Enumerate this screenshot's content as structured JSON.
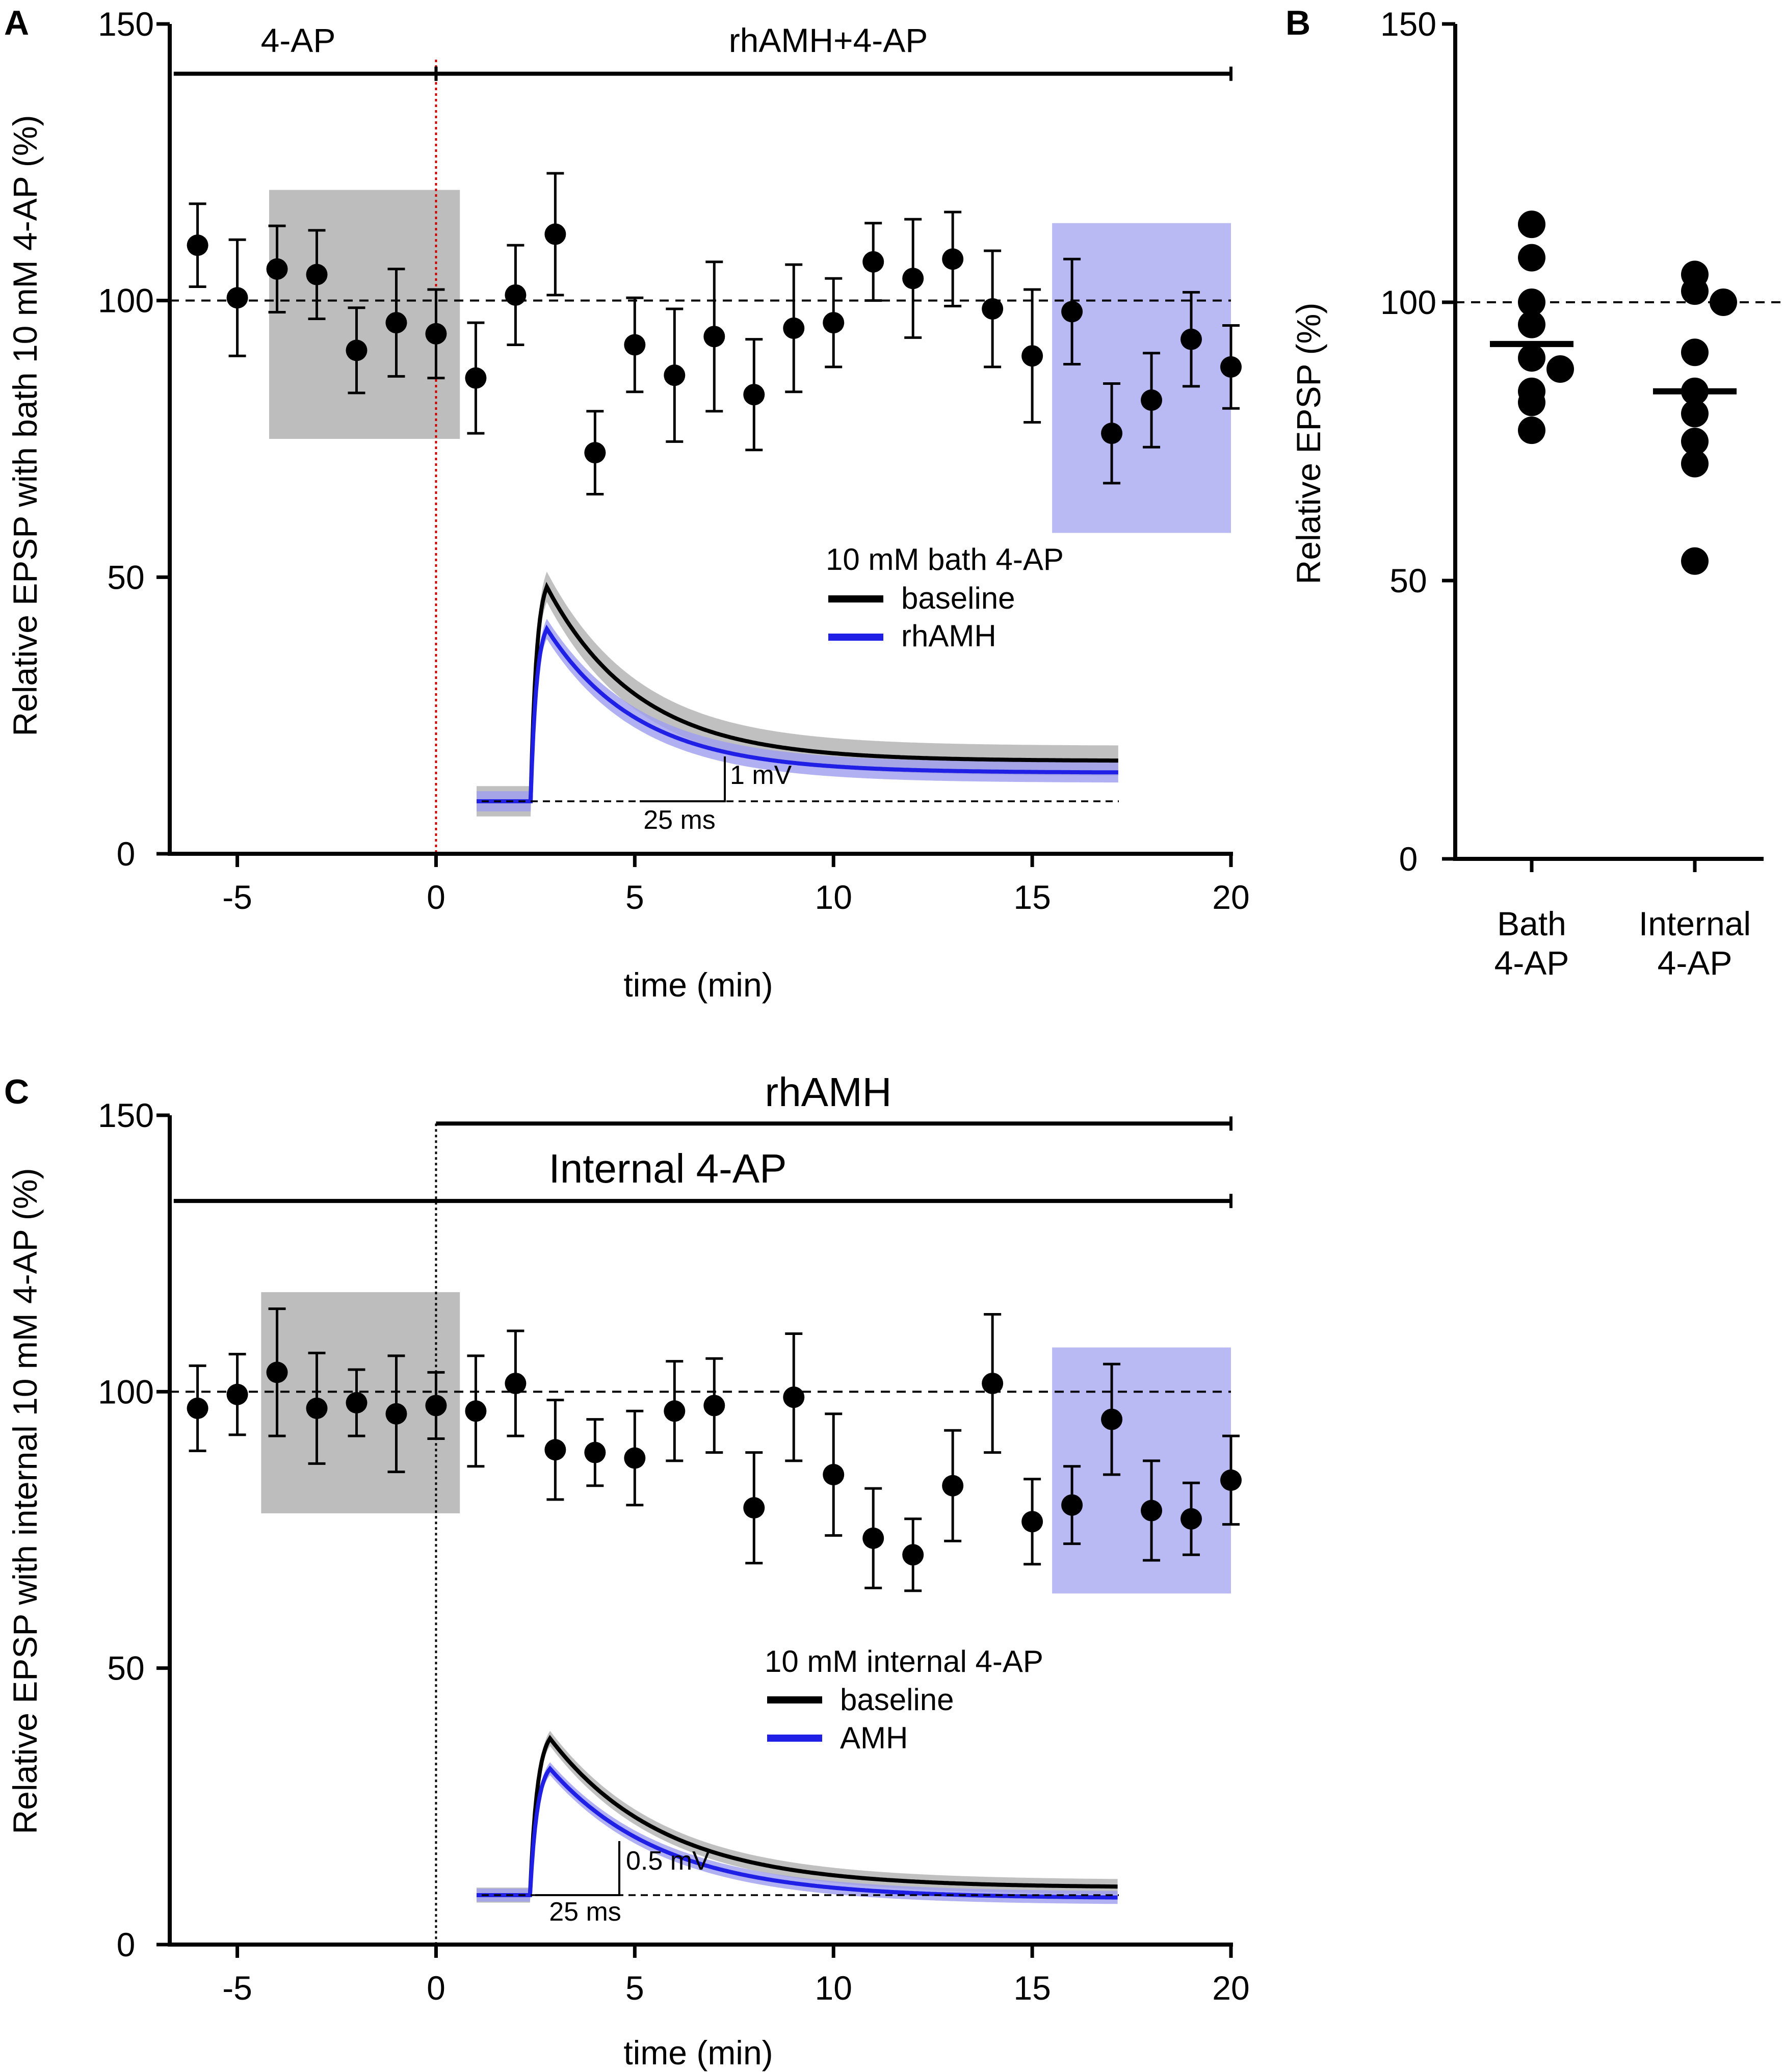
{
  "panel_labels": {
    "a": "A",
    "b": "B",
    "c": "C"
  },
  "colors": {
    "axis": "#000000",
    "gray_box": "#bdbdbd",
    "blue_box": "#b9b9f3",
    "rhamh_trace": "#1f1fe6",
    "baseline_trace": "#000000",
    "trace_band": "#b0b0b0",
    "blue_band": "#9c9cf0",
    "drug_start_line_a": "#cc0000"
  },
  "chart_data": [
    {
      "id": "A",
      "type": "scatter",
      "title": "",
      "xlabel": "time (min)",
      "ylabel": "Relative EPSP with bath 10 mM 4-AP (%)",
      "xlim": [
        -6.7,
        20
      ],
      "ylim": [
        0,
        150
      ],
      "xticks": [
        -5,
        0,
        5,
        10,
        15,
        20
      ],
      "xtick_labels": [
        "-5",
        "0",
        "5",
        "10",
        "15",
        "20"
      ],
      "yticks": [
        0,
        50,
        100,
        150
      ],
      "ytick_labels": [
        "0",
        "50",
        "100",
        "150"
      ],
      "reference_line": 100,
      "drug_bars": [
        {
          "label": "4-AP",
          "x_start": -6.6,
          "x_end": 0,
          "y": 141
        },
        {
          "label": "rhAMH+4-AP",
          "x_start": 0,
          "x_end": 20,
          "y": 141
        }
      ],
      "shaded_windows": [
        {
          "name": "baseline window",
          "x": [
            -4.2,
            0.6
          ],
          "y": [
            75,
            120
          ],
          "color": "gray"
        },
        {
          "name": "rhAMH window",
          "x": [
            15.5,
            20
          ],
          "y": [
            58,
            114
          ],
          "color": "blue"
        }
      ],
      "x": [
        -6,
        -5,
        -4,
        -3,
        -2,
        -1,
        0,
        1,
        2,
        3,
        4,
        5,
        6,
        7,
        8,
        9,
        10,
        11,
        12,
        13,
        14,
        15,
        16,
        17,
        18,
        19,
        20
      ],
      "values": [
        110,
        100.5,
        105.7,
        104.7,
        91,
        96,
        94,
        86,
        101,
        112,
        72.5,
        92,
        86.5,
        93.5,
        83,
        95,
        96,
        107,
        104,
        107.5,
        98.5,
        90,
        98,
        76,
        82,
        93,
        88
      ],
      "errors": [
        7.5,
        10.5,
        7.8,
        8,
        7.7,
        9.7,
        8,
        10,
        9,
        11,
        7.5,
        8.5,
        12,
        13.5,
        10,
        11.5,
        8,
        7,
        10.7,
        8.5,
        10.5,
        12,
        9.5,
        9,
        8.5,
        8.5,
        7.5
      ],
      "inset": {
        "legend_title": "10 mM bath 4-AP",
        "legend_entries": [
          "baseline",
          "rhAMH"
        ],
        "scale_v": "1 mV",
        "scale_t": "25 ms",
        "onset_ms": 20,
        "traces": [
          {
            "name": "baseline",
            "peak_mv": 2.55,
            "decay_end_mv": 0.48,
            "band_mv": 0.18
          },
          {
            "name": "rhAMH",
            "peak_mv": 2.05,
            "decay_end_mv": 0.34,
            "band_mv": 0.12
          }
        ]
      }
    },
    {
      "id": "B",
      "type": "scatter",
      "title": "",
      "xlabel": "",
      "ylabel": "Relative EPSP (%)",
      "ylim": [
        0,
        150
      ],
      "yticks": [
        0,
        50,
        100,
        150
      ],
      "ytick_labels": [
        "0",
        "50",
        "100",
        "150"
      ],
      "reference_line": 100,
      "categories": [
        "Bath 4-AP",
        "Internal 4-AP"
      ],
      "category_lines": [
        [
          "Bath",
          "4-AP"
        ],
        [
          "Internal",
          "4-AP"
        ]
      ],
      "series": [
        {
          "name": "Bath 4-AP",
          "points": [
            114,
            108,
            100,
            96,
            90,
            88,
            84,
            82,
            77
          ],
          "mean": 92.5
        },
        {
          "name": "Internal 4-AP",
          "points": [
            105,
            102,
            100,
            91,
            84,
            80,
            75,
            71,
            53.5
          ],
          "mean": 84
        }
      ]
    },
    {
      "id": "C",
      "type": "scatter",
      "title": "",
      "xlabel": "time (min)",
      "ylabel": "Relative EPSP with internal 10 mM 4-AP (%)",
      "xlim": [
        -6.7,
        20
      ],
      "ylim": [
        0,
        150
      ],
      "xticks": [
        -5,
        0,
        5,
        10,
        15,
        20
      ],
      "xtick_labels": [
        "-5",
        "0",
        "5",
        "10",
        "15",
        "20"
      ],
      "yticks": [
        0,
        50,
        100,
        150
      ],
      "ytick_labels": [
        "0",
        "50",
        "100",
        "150"
      ],
      "reference_line": 100,
      "drug_bars": [
        {
          "label": "rhAMH",
          "x_start": 0,
          "x_end": 20,
          "y": 148.5
        },
        {
          "label": "Internal 4-AP",
          "x_start": -6.6,
          "x_end": 20,
          "y": 134.5
        }
      ],
      "shaded_windows": [
        {
          "name": "baseline window",
          "x": [
            -4.4,
            0.6
          ],
          "y": [
            78,
            118
          ],
          "color": "gray"
        },
        {
          "name": "rhAMH window",
          "x": [
            15.5,
            20
          ],
          "y": [
            63.5,
            108
          ],
          "color": "blue"
        }
      ],
      "x": [
        -6,
        -5,
        -4,
        -3,
        -2,
        -1,
        0,
        1,
        2,
        3,
        4,
        5,
        6,
        7,
        8,
        9,
        10,
        11,
        12,
        13,
        14,
        15,
        16,
        17,
        18,
        19,
        20
      ],
      "values": [
        97,
        99.5,
        103.5,
        97,
        98,
        96,
        97.5,
        96.5,
        101.5,
        89.5,
        89,
        88,
        96.5,
        97.5,
        79,
        99,
        85,
        73.5,
        70.5,
        83,
        101.5,
        76.5,
        79.5,
        95,
        78.5,
        77,
        84
      ],
      "errors": [
        7.7,
        7.3,
        11.5,
        10,
        6,
        10.5,
        6,
        10,
        9.5,
        9,
        6,
        8.5,
        9,
        8.5,
        10,
        11.5,
        11,
        9,
        6.5,
        10,
        12.5,
        7.7,
        7,
        10,
        9,
        6.5,
        8
      ],
      "inset": {
        "legend_title": "10 mM internal 4-AP",
        "legend_entries": [
          "baseline",
          "AMH"
        ],
        "scale_v": "0.5 mV",
        "scale_t": "25 ms",
        "onset_ms": 16,
        "traces": [
          {
            "name": "baseline",
            "peak_mv": 1.45,
            "decay_end_mv": 0.07,
            "band_mv": 0.07
          },
          {
            "name": "AMH",
            "peak_mv": 1.17,
            "decay_end_mv": -0.03,
            "band_mv": 0.06
          }
        ]
      }
    }
  ]
}
